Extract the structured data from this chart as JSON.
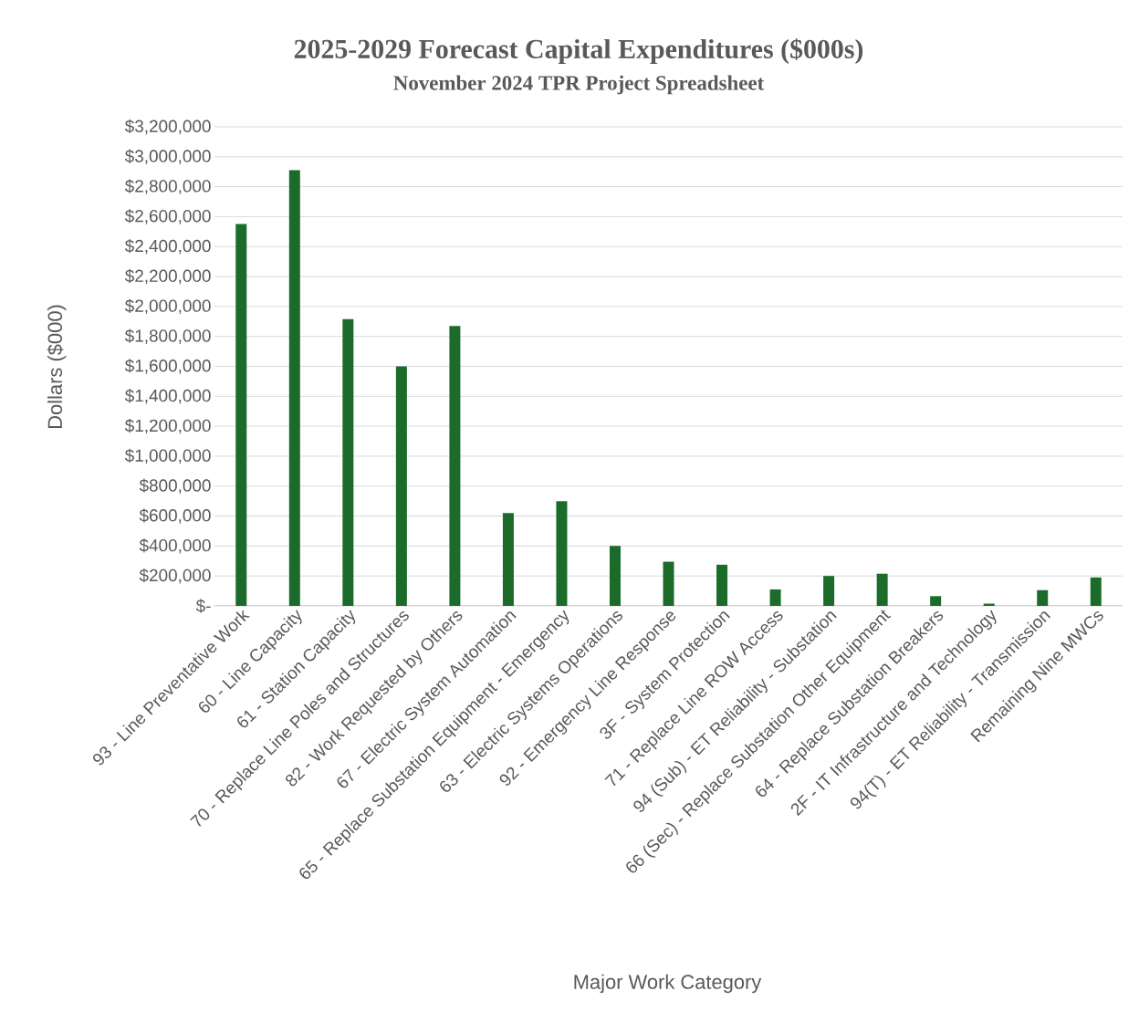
{
  "chart_data": {
    "type": "bar",
    "title": "2025-2029 Forecast Capital Expenditures ($000s)",
    "subtitle": "November 2024 TPR Project Spreadsheet",
    "xlabel": "Major Work Category",
    "ylabel": "Dollars ($000)",
    "categories": [
      "93 - Line Preventative Work",
      "60 - Line Capacity",
      "61 - Station Capacity",
      "70 - Replace Line Poles and Structures",
      "82 - Work Requested by Others",
      "67 - Electric System Automation",
      "65 - Replace Substation Equipment - Emergency",
      "63 - Electric Systems Operations",
      "92 - Emergency Line Response",
      "3F - System Protection",
      "71 - Replace Line ROW Access",
      "94 (Sub) - ET Reliability - Substation",
      "66 (Sec) - Replace Substation Other Equipment",
      "64 - Replace Substation Breakers",
      "2F - IT Infrastructure and Technology",
      "94(T) - ET Reliability - Transmission",
      "Remaining Nine MWCs"
    ],
    "values": [
      2550000,
      2910000,
      1915000,
      1600000,
      1870000,
      620000,
      700000,
      400000,
      295000,
      275000,
      110000,
      200000,
      215000,
      65000,
      15000,
      105000,
      190000
    ],
    "color": "#1b6b2a",
    "ylim": [
      0,
      3200000
    ],
    "yticks": [
      {
        "value": 0,
        "label": "$-"
      },
      {
        "value": 200000,
        "label": "$200,000"
      },
      {
        "value": 400000,
        "label": "$400,000"
      },
      {
        "value": 600000,
        "label": "$600,000"
      },
      {
        "value": 800000,
        "label": "$800,000"
      },
      {
        "value": 1000000,
        "label": "$1,000,000"
      },
      {
        "value": 1200000,
        "label": "$1,200,000"
      },
      {
        "value": 1400000,
        "label": "$1,400,000"
      },
      {
        "value": 1600000,
        "label": "$1,600,000"
      },
      {
        "value": 1800000,
        "label": "$1,800,000"
      },
      {
        "value": 2000000,
        "label": "$2,000,000"
      },
      {
        "value": 2200000,
        "label": "$2,200,000"
      },
      {
        "value": 2400000,
        "label": "$2,400,000"
      },
      {
        "value": 2600000,
        "label": "$2,600,000"
      },
      {
        "value": 2800000,
        "label": "$2,800,000"
      },
      {
        "value": 3000000,
        "label": "$3,000,000"
      },
      {
        "value": 3200000,
        "label": "$3,200,000"
      }
    ],
    "grid": "y"
  }
}
